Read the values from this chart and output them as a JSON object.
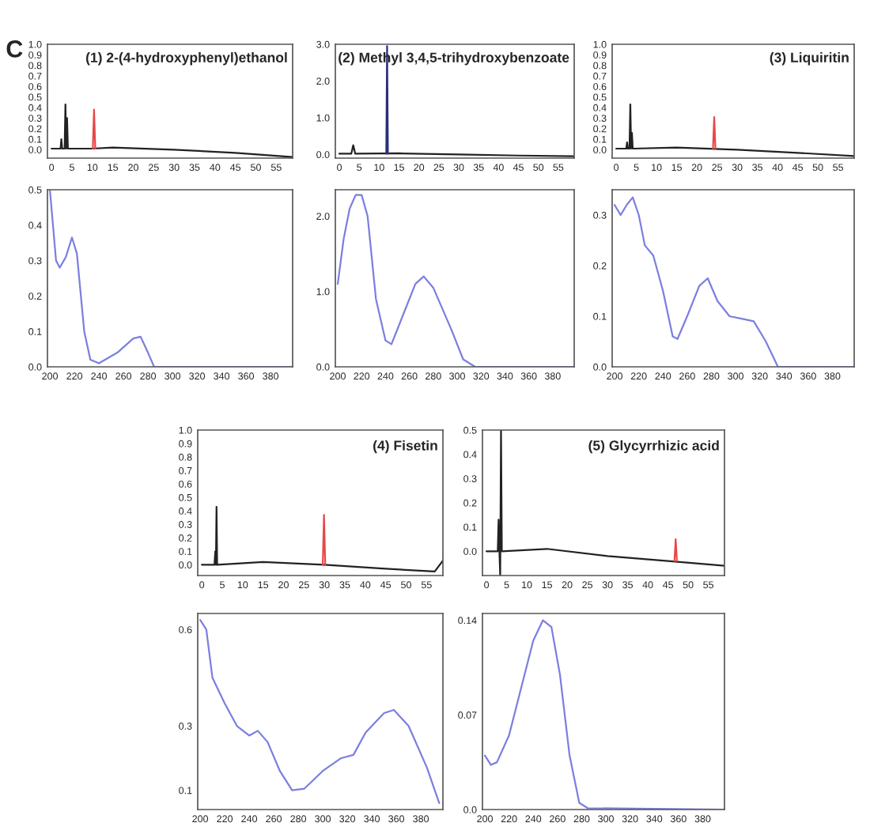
{
  "chart_data": [
    {
      "type": "line",
      "title": "(1) 2-(4-hydroxyphenyl)ethanol",
      "annotations": [
        "C"
      ],
      "xlim": [
        -1,
        59
      ],
      "ylim": [
        -0.08,
        1.0
      ],
      "xticks": [
        0,
        5,
        10,
        15,
        20,
        25,
        30,
        35,
        40,
        45,
        50,
        55
      ],
      "yticks": [
        {
          "value": 0,
          "label": "0.0"
        },
        0.1,
        0.2,
        0.3,
        0.4,
        0.5,
        0.6,
        0.7,
        0.8,
        0.9,
        {
          "value": 1,
          "label": "1.0"
        }
      ],
      "grid": false,
      "series": [
        {
          "color": "#222222",
          "x": [
            0,
            2.2,
            2.4,
            2.6,
            3.2,
            3.4,
            3.6,
            3.8,
            4.0,
            9.8,
            15,
            30,
            45,
            59
          ],
          "values": [
            0.01,
            0.01,
            0.1,
            0.01,
            0.01,
            0.43,
            0.01,
            0.3,
            0.01,
            0.01,
            0.02,
            0.0,
            -0.03,
            -0.07
          ]
        },
        {
          "color": "#e8474a",
          "x": [
            10.1,
            10.4,
            10.7
          ],
          "values": [
            0.01,
            0.38,
            0.01
          ]
        }
      ]
    },
    {
      "type": "line",
      "title": "(2) Methyl 3,4,5-trihydroxybenzoate",
      "xlim": [
        -1,
        59
      ],
      "ylim": [
        -0.1,
        3.0
      ],
      "xticks": [
        0,
        5,
        10,
        15,
        20,
        25,
        30,
        35,
        40,
        45,
        50,
        55
      ],
      "yticks": [
        {
          "value": 0,
          "label": "0.0"
        },
        {
          "value": 1,
          "label": "1.0"
        },
        {
          "value": 2,
          "label": "2.0"
        },
        {
          "value": 3,
          "label": "3.0"
        }
      ],
      "grid": false,
      "series": [
        {
          "color": "#222222",
          "x": [
            0,
            3,
            3.5,
            4,
            15,
            30,
            45,
            59
          ],
          "values": [
            0.02,
            0.02,
            0.25,
            0.02,
            0.03,
            0.0,
            -0.03,
            -0.05
          ]
        },
        {
          "color": "#2a2f7a",
          "x": [
            11.8,
            12.0,
            12.2
          ],
          "values": [
            0.02,
            2.95,
            0.02
          ]
        }
      ]
    },
    {
      "type": "line",
      "title": "(3) Liquiritin",
      "xlim": [
        -1,
        59
      ],
      "ylim": [
        -0.08,
        1.0
      ],
      "xticks": [
        0,
        5,
        10,
        15,
        20,
        25,
        30,
        35,
        40,
        45,
        50,
        55
      ],
      "yticks": [
        {
          "value": 0,
          "label": "0.0"
        },
        0.1,
        0.2,
        0.3,
        0.4,
        0.5,
        0.6,
        0.7,
        0.8,
        0.9,
        {
          "value": 1,
          "label": "1.0"
        }
      ],
      "grid": false,
      "series": [
        {
          "color": "#222222",
          "x": [
            0,
            2.5,
            2.7,
            2.9,
            3.3,
            3.5,
            3.7,
            3.9,
            4.1,
            15,
            30,
            45,
            59
          ],
          "values": [
            0.01,
            0.01,
            0.07,
            0.01,
            0.01,
            0.43,
            0.01,
            0.16,
            0.01,
            0.02,
            0.0,
            -0.03,
            -0.06
          ]
        },
        {
          "color": "#e8474a",
          "x": [
            24.0,
            24.3,
            24.6
          ],
          "values": [
            0.01,
            0.31,
            0.01
          ]
        }
      ]
    },
    {
      "type": "line",
      "xlim": [
        198,
        398
      ],
      "ylim": [
        0.0,
        0.5
      ],
      "xticks": [
        200,
        220,
        240,
        260,
        280,
        300,
        320,
        340,
        360,
        380
      ],
      "yticks": [
        {
          "value": 0,
          "label": "0.0"
        },
        0.1,
        0.2,
        0.3,
        0.4,
        0.5
      ],
      "grid": false,
      "series": [
        {
          "color": "#7b7fe0",
          "x": [
            200,
            205,
            208,
            213,
            218,
            222,
            228,
            233,
            240,
            255,
            268,
            274,
            280,
            285,
            300,
            398
          ],
          "values": [
            0.5,
            0.3,
            0.28,
            0.31,
            0.365,
            0.32,
            0.1,
            0.02,
            0.01,
            0.04,
            0.08,
            0.085,
            0.04,
            0.0,
            0.0,
            0.0
          ]
        }
      ]
    },
    {
      "type": "line",
      "xlim": [
        198,
        398
      ],
      "ylim": [
        0.0,
        2.35
      ],
      "xticks": [
        200,
        220,
        240,
        260,
        280,
        300,
        320,
        340,
        360,
        380
      ],
      "yticks": [
        {
          "value": 0,
          "label": "0.0"
        },
        {
          "value": 1,
          "label": "1.0"
        },
        {
          "value": 2,
          "label": "2.0"
        }
      ],
      "grid": false,
      "series": [
        {
          "color": "#7b7fe0",
          "x": [
            200,
            205,
            210,
            215,
            220,
            225,
            232,
            240,
            245,
            255,
            265,
            272,
            280,
            295,
            305,
            315,
            398
          ],
          "values": [
            1.1,
            1.7,
            2.1,
            2.28,
            2.28,
            2.0,
            0.9,
            0.35,
            0.3,
            0.7,
            1.1,
            1.2,
            1.05,
            0.5,
            0.1,
            0.0,
            0.0
          ]
        }
      ]
    },
    {
      "type": "line",
      "xlim": [
        198,
        398
      ],
      "ylim": [
        0.0,
        0.35
      ],
      "xticks": [
        200,
        220,
        240,
        260,
        280,
        300,
        320,
        340,
        360,
        380
      ],
      "yticks": [
        {
          "value": 0,
          "label": "0.0"
        },
        0.1,
        0.2,
        0.3
      ],
      "grid": false,
      "series": [
        {
          "color": "#7b7fe0",
          "x": [
            200,
            205,
            210,
            215,
            220,
            225,
            232,
            240,
            248,
            252,
            260,
            270,
            277,
            285,
            295,
            305,
            315,
            325,
            335,
            398
          ],
          "values": [
            0.32,
            0.3,
            0.32,
            0.335,
            0.3,
            0.24,
            0.22,
            0.15,
            0.06,
            0.055,
            0.1,
            0.16,
            0.175,
            0.13,
            0.1,
            0.095,
            0.09,
            0.05,
            0.0,
            0.0
          ]
        }
      ]
    },
    {
      "type": "line",
      "title": "(4) Fisetin",
      "xlim": [
        -1,
        59
      ],
      "ylim": [
        -0.08,
        1.0
      ],
      "xticks": [
        0,
        5,
        10,
        15,
        20,
        25,
        30,
        35,
        40,
        45,
        50,
        55
      ],
      "yticks": [
        {
          "value": 0,
          "label": "0.0"
        },
        0.1,
        0.2,
        0.3,
        0.4,
        0.5,
        0.6,
        0.7,
        0.8,
        0.9,
        {
          "value": 1,
          "label": "1.0"
        }
      ],
      "grid": false,
      "series": [
        {
          "color": "#222222",
          "x": [
            0,
            3.1,
            3.3,
            3.45,
            3.6,
            3.75,
            15,
            30,
            45,
            57,
            59
          ],
          "values": [
            0.0,
            0.0,
            0.1,
            0.0,
            0.43,
            0.0,
            0.02,
            0.0,
            -0.03,
            -0.05,
            0.03
          ]
        },
        {
          "color": "#e8474a",
          "x": [
            29.6,
            29.9,
            30.2
          ],
          "values": [
            0.0,
            0.37,
            0.0
          ]
        }
      ]
    },
    {
      "type": "line",
      "title": "(5) Glycyrrhizic acid",
      "xlim": [
        -1,
        59
      ],
      "ylim": [
        -0.1,
        0.5
      ],
      "xticks": [
        0,
        5,
        10,
        15,
        20,
        25,
        30,
        35,
        40,
        45,
        50,
        55
      ],
      "yticks": [
        {
          "value": 0,
          "label": "0.0"
        },
        0.1,
        0.2,
        0.3,
        0.4,
        0.5
      ],
      "grid": false,
      "series": [
        {
          "color": "#222222",
          "x": [
            0,
            2.8,
            3.0,
            3.2,
            3.4,
            3.6,
            3.8,
            15,
            30,
            45,
            59
          ],
          "values": [
            0.0,
            0.0,
            0.13,
            0.0,
            -0.1,
            0.5,
            0.0,
            0.01,
            -0.02,
            -0.04,
            -0.06
          ]
        },
        {
          "color": "#e8474a",
          "x": [
            46.6,
            46.9,
            47.2
          ],
          "values": [
            -0.04,
            0.05,
            -0.04
          ]
        }
      ]
    },
    {
      "type": "line",
      "xlim": [
        198,
        398
      ],
      "ylim": [
        0.04,
        0.65
      ],
      "xticks": [
        200,
        220,
        240,
        260,
        280,
        300,
        320,
        340,
        360,
        380
      ],
      "yticks": [
        0.1,
        0.3,
        0.6
      ],
      "grid": false,
      "series": [
        {
          "color": "#7b7fe0",
          "x": [
            200,
            205,
            210,
            220,
            230,
            240,
            247,
            255,
            265,
            275,
            285,
            300,
            315,
            325,
            335,
            350,
            358,
            370,
            385,
            395
          ],
          "values": [
            0.63,
            0.6,
            0.45,
            0.37,
            0.3,
            0.27,
            0.285,
            0.25,
            0.16,
            0.1,
            0.105,
            0.16,
            0.2,
            0.21,
            0.28,
            0.34,
            0.35,
            0.3,
            0.17,
            0.06
          ]
        }
      ]
    },
    {
      "type": "line",
      "xlim": [
        198,
        398
      ],
      "ylim": [
        0.0,
        0.145
      ],
      "xticks": [
        200,
        220,
        240,
        260,
        280,
        300,
        320,
        340,
        360,
        380
      ],
      "yticks": [
        {
          "value": 0,
          "label": "0.0"
        },
        0.07,
        0.14
      ],
      "grid": false,
      "series": [
        {
          "color": "#7b7fe0",
          "x": [
            200,
            205,
            210,
            220,
            230,
            240,
            248,
            255,
            262,
            270,
            278,
            285,
            398
          ],
          "values": [
            0.04,
            0.033,
            0.035,
            0.055,
            0.09,
            0.125,
            0.14,
            0.135,
            0.1,
            0.04,
            0.005,
            0.001,
            0.0
          ]
        }
      ]
    }
  ]
}
